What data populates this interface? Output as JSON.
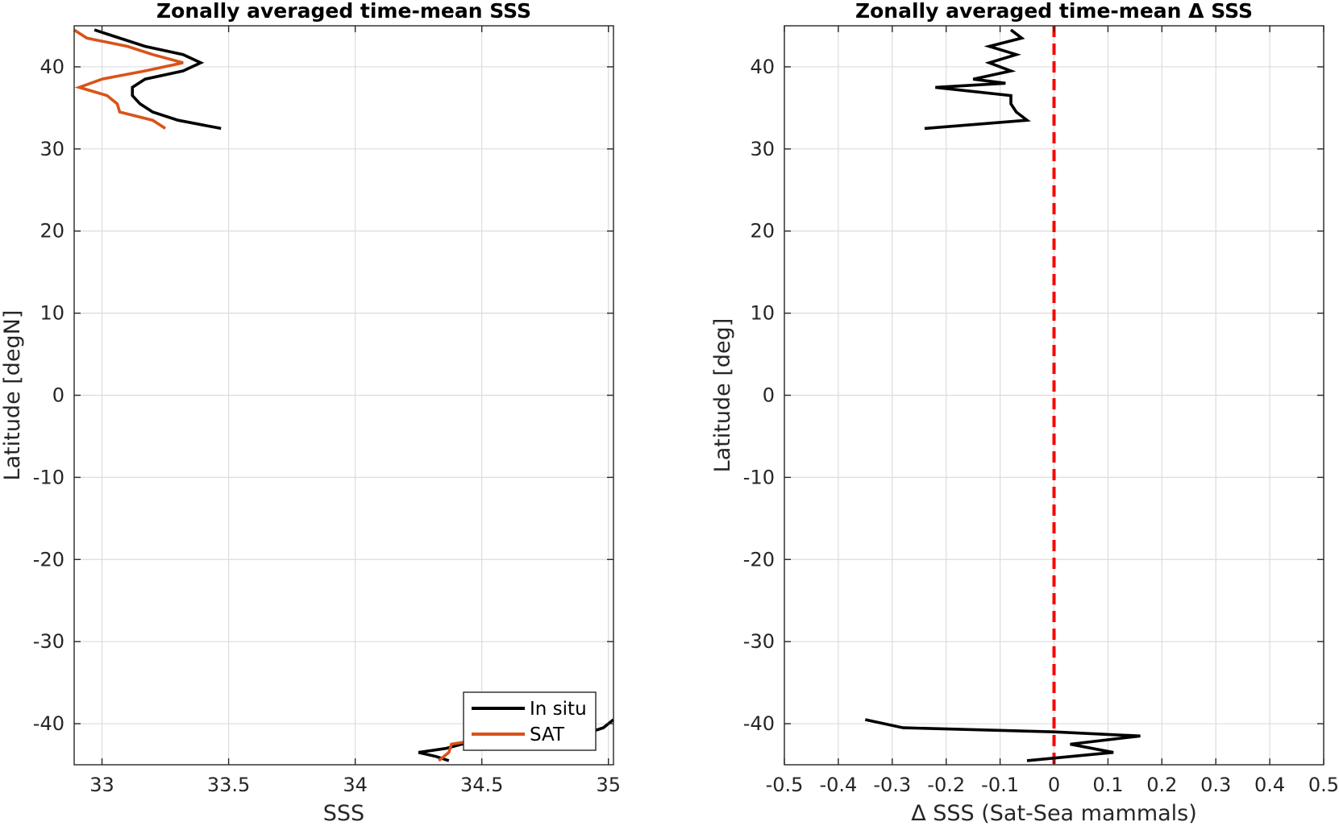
{
  "chart_data": [
    {
      "type": "line",
      "title": "Zonally averaged time-mean SSS",
      "xlabel": "SSS",
      "ylabel": "Latitude [degN]",
      "xlim": [
        32.89,
        35.02
      ],
      "ylim": [
        -45,
        45
      ],
      "xticks": [
        33,
        33.5,
        34,
        34.5,
        35
      ],
      "xtick_labels": [
        "33",
        "33.5",
        "34",
        "34.5",
        "35"
      ],
      "yticks": [
        -40,
        -30,
        -20,
        -10,
        0,
        10,
        20,
        30,
        40
      ],
      "ytick_labels": [
        "-40",
        "-30",
        "-20",
        "-10",
        "0",
        "10",
        "20",
        "30",
        "40"
      ],
      "grid": true,
      "legend": "bottom-right",
      "series": [
        {
          "name": "In situ",
          "color": "#000000",
          "segments": [
            [
              [
                32.97,
                44.5
              ],
              [
                33.17,
                42.5
              ],
              [
                33.32,
                41.5
              ],
              [
                33.39,
                40.5
              ],
              [
                33.32,
                39.5
              ],
              [
                33.17,
                38.5
              ],
              [
                33.12,
                37.5
              ],
              [
                33.12,
                36.5
              ],
              [
                33.15,
                35.5
              ],
              [
                33.2,
                34.5
              ],
              [
                33.3,
                33.5
              ],
              [
                33.47,
                32.5
              ]
            ],
            [
              [
                34.37,
                -44.5
              ],
              [
                34.32,
                -44.0
              ],
              [
                34.25,
                -43.5
              ],
              [
                34.36,
                -43.0
              ],
              [
                34.42,
                -42.5
              ],
              [
                34.56,
                -42.0
              ],
              [
                34.72,
                -41.5
              ],
              [
                34.95,
                -40.8
              ],
              [
                34.98,
                -40.5
              ],
              [
                35.02,
                -39.5
              ]
            ]
          ]
        },
        {
          "name": "SAT",
          "color": "#d95319",
          "segments": [
            [
              [
                32.89,
                44.5
              ],
              [
                32.94,
                43.5
              ],
              [
                33.1,
                42.5
              ],
              [
                33.2,
                41.5
              ],
              [
                33.32,
                40.5
              ],
              [
                33.17,
                39.5
              ],
              [
                33.0,
                38.5
              ],
              [
                32.91,
                37.5
              ],
              [
                33.02,
                36.5
              ],
              [
                33.06,
                35.5
              ],
              [
                33.07,
                34.5
              ],
              [
                33.2,
                33.5
              ],
              [
                33.25,
                32.5
              ]
            ],
            [
              [
                34.33,
                -44.5
              ],
              [
                34.37,
                -43.5
              ],
              [
                34.38,
                -42.5
              ],
              [
                34.48,
                -42.0
              ],
              [
                34.56,
                -41.5
              ]
            ]
          ]
        }
      ]
    },
    {
      "type": "line",
      "title": "Zonally averaged time-mean Δ SSS",
      "xlabel": "Δ SSS (Sat-Sea mammals)",
      "ylabel": "Latitude [deg]",
      "xlim": [
        -0.5,
        0.5
      ],
      "ylim": [
        -45,
        45
      ],
      "xticks": [
        -0.5,
        -0.4,
        -0.3,
        -0.2,
        -0.1,
        0,
        0.1,
        0.2,
        0.3,
        0.4,
        0.5
      ],
      "xtick_labels": [
        "-0.5",
        "-0.4",
        "-0.3",
        "-0.2",
        "-0.1",
        "0",
        "0.1",
        "0.2",
        "0.3",
        "0.4",
        "0.5"
      ],
      "yticks": [
        -40,
        -30,
        -20,
        -10,
        0,
        10,
        20,
        30,
        40
      ],
      "ytick_labels": [
        "-40",
        "-30",
        "-20",
        "-10",
        "0",
        "10",
        "20",
        "30",
        "40"
      ],
      "grid": true,
      "reference_line": {
        "x": 0,
        "color": "#ff0000",
        "style": "dashed"
      },
      "series": [
        {
          "color": "#000000",
          "segments": [
            [
              [
                -0.08,
                44.5
              ],
              [
                -0.06,
                43.5
              ],
              [
                -0.12,
                42.5
              ],
              [
                -0.07,
                41.5
              ],
              [
                -0.12,
                40.5
              ],
              [
                -0.08,
                39.5
              ],
              [
                -0.15,
                38.5
              ],
              [
                -0.09,
                38.0
              ],
              [
                -0.22,
                37.5
              ],
              [
                -0.08,
                36.5
              ],
              [
                -0.08,
                35.5
              ],
              [
                -0.07,
                34.5
              ],
              [
                -0.05,
                33.5
              ],
              [
                -0.24,
                32.5
              ]
            ],
            [
              [
                -0.35,
                -39.5
              ],
              [
                -0.28,
                -40.5
              ],
              [
                0.0,
                -41.0
              ],
              [
                0.16,
                -41.5
              ],
              [
                0.03,
                -42.5
              ],
              [
                0.11,
                -43.5
              ],
              [
                -0.05,
                -44.5
              ]
            ]
          ]
        }
      ]
    }
  ]
}
